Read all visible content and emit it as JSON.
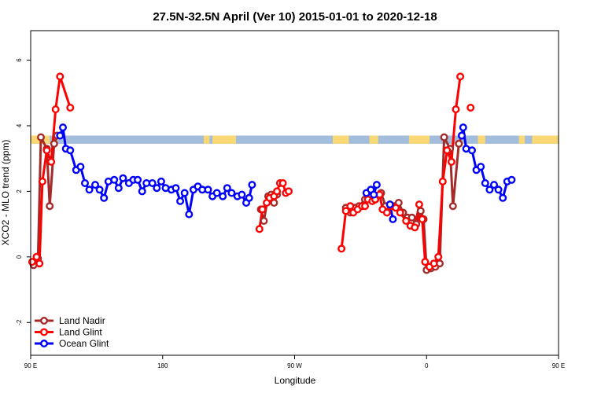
{
  "chart_data": {
    "type": "line",
    "title": "27.5N-32.5N April (Ver 10)   2015-01-01 to 2020-12-18",
    "xlabel": "Longitude",
    "ylabel": "XCO2 - MLO trend (ppm)",
    "xlim": [
      90,
      450
    ],
    "ylim": [
      -3,
      6.9
    ],
    "xticks": [
      {
        "value": 90,
        "label": "90 E"
      },
      {
        "value": 180,
        "label": "180"
      },
      {
        "value": 270,
        "label": "90 W"
      },
      {
        "value": 360,
        "label": "0"
      },
      {
        "value": 450,
        "label": "90 E"
      },
      {
        "value": 540,
        "label": "180"
      }
    ],
    "yticks": [
      -2,
      0,
      2,
      4,
      6
    ],
    "legend_position": "bottom-left",
    "colors": {
      "land_nadir": "#a52a2a",
      "land_glint": "#ff0000",
      "ocean_glint": "#0000ff",
      "land_band": "#fad875",
      "ocean_band": "#a3bedc"
    },
    "surface_band": {
      "description": "land/ocean mask along the latitude band",
      "y_range": [
        3.45,
        3.7
      ],
      "land_segments": [
        [
          90,
          103
        ],
        [
          208,
          212
        ],
        [
          214,
          230
        ],
        [
          296,
          307
        ],
        [
          321,
          327
        ],
        [
          348,
          362
        ],
        [
          395,
          400
        ],
        [
          423,
          427
        ],
        [
          432,
          450
        ],
        [
          540,
          542
        ]
      ]
    },
    "series": [
      {
        "name": "Land Nadir",
        "color": "#a52a2a",
        "segments": [
          [
            [
              92,
              -0.25
            ],
            [
              95,
              -0.05
            ],
            [
              97,
              3.65
            ],
            [
              101,
              3.3
            ],
            [
              103,
              1.55
            ],
            [
              106,
              3.45
            ],
            [
              108,
              3.7
            ]
          ],
          [
            [
              247,
              1.45
            ],
            [
              249,
              1.1
            ],
            [
              252,
              1.85
            ],
            [
              254,
              1.9
            ],
            [
              256,
              1.65
            ],
            [
              258,
              1.9
            ]
          ],
          [
            [
              305,
              1.5
            ],
            [
              308,
              1.35
            ],
            [
              311,
              1.5
            ],
            [
              314,
              1.55
            ],
            [
              318,
              1.75
            ],
            [
              322,
              1.85
            ],
            [
              325,
              1.75
            ],
            [
              329,
              1.95
            ],
            [
              332,
              1.55
            ],
            [
              335,
              1.6
            ],
            [
              338,
              1.55
            ],
            [
              341,
              1.65
            ],
            [
              344,
              1.35
            ],
            [
              347,
              1.2
            ],
            [
              350,
              1.2
            ],
            [
              353,
              1.0
            ],
            [
              356,
              1.4
            ],
            [
              358,
              1.15
            ],
            [
              360,
              -0.4
            ],
            [
              363,
              -0.35
            ],
            [
              366,
              -0.3
            ],
            [
              369,
              -0.2
            ],
            [
              372,
              3.65
            ],
            [
              376,
              3.3
            ],
            [
              378,
              1.55
            ],
            [
              382,
              3.45
            ],
            [
              384,
              3.7
            ]
          ]
        ]
      },
      {
        "name": "Land Glint",
        "color": "#ff0000",
        "segments": [
          [
            [
              91,
              -0.15
            ],
            [
              94,
              0.0
            ],
            [
              96,
              -0.2
            ],
            [
              98,
              2.3
            ],
            [
              101,
              3.25
            ],
            [
              104,
              2.9
            ],
            [
              107,
              4.5
            ],
            [
              110,
              5.5
            ],
            [
              117,
              4.55
            ]
          ],
          [
            [
              246,
              0.85
            ],
            [
              248,
              1.45
            ],
            [
              251,
              1.65
            ],
            [
              253,
              1.8
            ],
            [
              256,
              1.85
            ],
            [
              258,
              2.0
            ],
            [
              260,
              2.25
            ],
            [
              262,
              2.25
            ],
            [
              264,
              1.95
            ],
            [
              266,
              2.0
            ]
          ],
          [
            [
              302,
              0.25
            ],
            [
              305,
              1.4
            ],
            [
              308,
              1.55
            ],
            [
              310,
              1.35
            ],
            [
              313,
              1.45
            ],
            [
              316,
              1.55
            ],
            [
              318,
              1.55
            ],
            [
              320,
              1.75
            ],
            [
              323,
              1.7
            ],
            [
              325,
              1.75
            ],
            [
              328,
              1.9
            ],
            [
              330,
              1.45
            ],
            [
              333,
              1.35
            ],
            [
              336,
              1.55
            ],
            [
              339,
              1.5
            ],
            [
              342,
              1.35
            ],
            [
              346,
              1.1
            ],
            [
              349,
              0.95
            ],
            [
              352,
              0.9
            ],
            [
              355,
              1.6
            ],
            [
              357,
              1.15
            ],
            [
              359,
              -0.15
            ],
            [
              362,
              -0.3
            ],
            [
              365,
              -0.2
            ],
            [
              368,
              0.0
            ],
            [
              371,
              2.3
            ],
            [
              374,
              3.25
            ],
            [
              377,
              2.9
            ],
            [
              380,
              4.5
            ],
            [
              383,
              5.5
            ]
          ],
          [
            [
              390,
              4.55
            ]
          ]
        ]
      },
      {
        "name": "Ocean Glint",
        "color": "#0000ff",
        "segments": [
          [
            [
              110,
              3.7
            ],
            [
              112,
              3.95
            ],
            [
              114,
              3.3
            ],
            [
              117,
              3.25
            ],
            [
              121,
              2.65
            ],
            [
              124,
              2.75
            ],
            [
              127,
              2.25
            ],
            [
              130,
              2.05
            ],
            [
              134,
              2.2
            ],
            [
              137,
              2.05
            ],
            [
              140,
              1.8
            ],
            [
              143,
              2.3
            ],
            [
              147,
              2.35
            ],
            [
              150,
              2.1
            ],
            [
              153,
              2.4
            ],
            [
              157,
              2.25
            ],
            [
              160,
              2.35
            ],
            [
              163,
              2.35
            ],
            [
              166,
              2.0
            ],
            [
              169,
              2.25
            ],
            [
              173,
              2.25
            ],
            [
              176,
              2.1
            ],
            [
              179,
              2.3
            ],
            [
              182,
              2.1
            ],
            [
              186,
              2.05
            ],
            [
              189,
              2.1
            ],
            [
              192,
              1.7
            ],
            [
              195,
              1.95
            ],
            [
              198,
              1.3
            ],
            [
              201,
              2.05
            ],
            [
              204,
              2.15
            ],
            [
              207,
              2.05
            ],
            [
              211,
              2.05
            ],
            [
              214,
              1.85
            ],
            [
              217,
              1.95
            ],
            [
              221,
              1.85
            ],
            [
              224,
              2.1
            ],
            [
              227,
              1.95
            ],
            [
              231,
              1.85
            ],
            [
              234,
              1.9
            ],
            [
              237,
              1.65
            ],
            [
              239,
              1.8
            ],
            [
              241,
              2.2
            ]
          ],
          [
            [
              319,
              1.95
            ],
            [
              322,
              2.05
            ],
            [
              324,
              1.9
            ],
            [
              326,
              2.2
            ]
          ],
          [
            [
              335,
              1.6
            ],
            [
              337,
              1.15
            ]
          ],
          [
            [
              384,
              3.7
            ],
            [
              385,
              3.95
            ],
            [
              387,
              3.3
            ],
            [
              391,
              3.25
            ],
            [
              394,
              2.65
            ],
            [
              397,
              2.75
            ],
            [
              400,
              2.25
            ],
            [
              403,
              2.05
            ],
            [
              406,
              2.2
            ],
            [
              409,
              2.05
            ],
            [
              412,
              1.8
            ],
            [
              415,
              2.3
            ],
            [
              418,
              2.35
            ]
          ]
        ]
      }
    ]
  }
}
